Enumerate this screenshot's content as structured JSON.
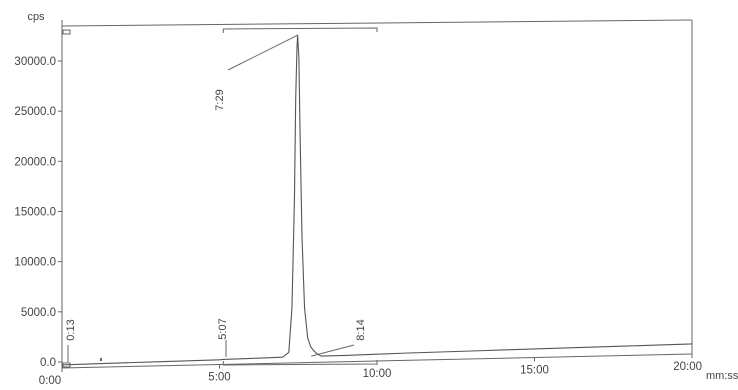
{
  "chart_data": {
    "type": "line",
    "title": "",
    "ylabel": "cps",
    "xlabel": "mm:ss",
    "xlim": [
      0,
      20
    ],
    "ylim": [
      -1500,
      34000
    ],
    "x_ticks": [
      {
        "value": 0,
        "label": "0:00"
      },
      {
        "value": 5,
        "label": "5:00"
      },
      {
        "value": 10,
        "label": "10:00"
      },
      {
        "value": 15,
        "label": "15:00"
      },
      {
        "value": 20,
        "label": "20:00"
      }
    ],
    "y_ticks": [
      {
        "value": 0,
        "label": "0.0"
      },
      {
        "value": 5000,
        "label": "5000.0"
      },
      {
        "value": 10000,
        "label": "10000.0"
      },
      {
        "value": 15000,
        "label": "15000.0"
      },
      {
        "value": 20000,
        "label": "20000.0"
      },
      {
        "value": 25000,
        "label": "25000.0"
      },
      {
        "value": 30000,
        "label": "30000.0"
      }
    ],
    "series": [
      {
        "x": [
          0,
          0.22,
          1,
          2,
          3,
          4,
          5,
          5.12,
          6,
          7,
          7.2,
          7.3,
          7.38,
          7.42,
          7.46,
          7.48,
          7.52,
          7.56,
          7.62,
          7.7,
          7.8,
          7.9,
          8.0,
          8.1,
          8.23,
          9,
          10,
          11,
          12,
          13,
          14,
          15,
          16,
          17,
          18,
          19,
          20
        ],
        "y": [
          -300,
          -280,
          -230,
          -180,
          -130,
          -80,
          -30,
          0,
          60,
          130,
          600,
          5000,
          16000,
          26000,
          31000,
          32200,
          30000,
          22000,
          12000,
          5000,
          2000,
          1100,
          700,
          400,
          180,
          210,
          280,
          350,
          400,
          450,
          500,
          550,
          600,
          650,
          700,
          750,
          800
        ]
      }
    ],
    "annotations": [
      {
        "label": "0:13",
        "x": 0.22
      },
      {
        "label": "5:07",
        "x": 5.12
      },
      {
        "label": "7:29",
        "x": 7.48
      },
      {
        "label": "8:14",
        "x": 8.23
      }
    ],
    "integration_bracket": {
      "start": 5.12,
      "end": 10.0
    },
    "grid": false,
    "legend": "none",
    "colors": {
      "line": "#555555",
      "axes": "#666666",
      "text": "#444444"
    }
  }
}
